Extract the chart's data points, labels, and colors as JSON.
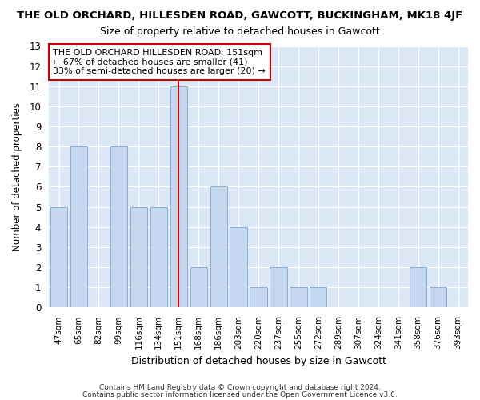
{
  "title": "THE OLD ORCHARD, HILLESDEN ROAD, GAWCOTT, BUCKINGHAM, MK18 4JF",
  "subtitle": "Size of property relative to detached houses in Gawcott",
  "xlabel": "Distribution of detached houses by size in Gawcott",
  "ylabel": "Number of detached properties",
  "categories": [
    "47sqm",
    "65sqm",
    "82sqm",
    "99sqm",
    "116sqm",
    "134sqm",
    "151sqm",
    "168sqm",
    "186sqm",
    "203sqm",
    "220sqm",
    "237sqm",
    "255sqm",
    "272sqm",
    "289sqm",
    "307sqm",
    "324sqm",
    "341sqm",
    "358sqm",
    "376sqm",
    "393sqm"
  ],
  "values": [
    5,
    8,
    0,
    8,
    5,
    5,
    11,
    2,
    6,
    4,
    1,
    2,
    1,
    1,
    0,
    0,
    0,
    0,
    2,
    1,
    0
  ],
  "bar_color": "#c5d8f0",
  "bar_edgecolor": "#8ab0d8",
  "highlight_index": 6,
  "highlight_line_color": "#cc0000",
  "ylim": [
    0,
    13
  ],
  "yticks": [
    0,
    1,
    2,
    3,
    4,
    5,
    6,
    7,
    8,
    9,
    10,
    11,
    12,
    13
  ],
  "annotation_text": "THE OLD ORCHARD HILLESDEN ROAD: 151sqm\n← 67% of detached houses are smaller (41)\n33% of semi-detached houses are larger (20) →",
  "annotation_box_color": "#ffffff",
  "annotation_box_edgecolor": "#cc0000",
  "footer1": "Contains HM Land Registry data © Crown copyright and database right 2024.",
  "footer2": "Contains public sector information licensed under the Open Government Licence v3.0.",
  "fig_bg_color": "#ffffff",
  "plot_bg_color": "#dce8f5",
  "grid_color": "#ffffff"
}
